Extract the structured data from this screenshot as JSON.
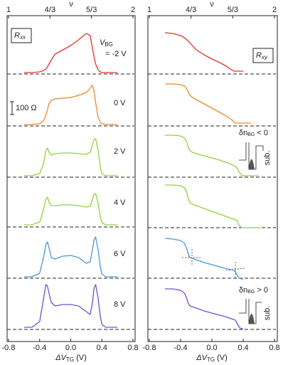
{
  "chart_data": [
    {
      "type": "line",
      "panel_label": {
        "main": "R",
        "sub": "xx"
      },
      "xlabel": {
        "main": "ΔV",
        "sub": "TG",
        "unit": " (V)"
      },
      "x2label": "ν",
      "gate_label": {
        "main": "V",
        "sub": "BG"
      },
      "scale_bar": "100 Ω",
      "xlim": [
        -0.8,
        0.8
      ],
      "xticks": [
        -0.8,
        -0.4,
        {
          "value": 0,
          "label": "0.0"
        },
        0.4,
        0.8
      ],
      "x2lim": [
        1,
        2
      ],
      "x2ticks": [
        1,
        {
          "value": 1.3333,
          "label": "4/3"
        },
        {
          "value": 1.6667,
          "label": "5/3"
        },
        2
      ],
      "ylim": [
        0,
        460
      ],
      "baselines": [
        376,
        303,
        231,
        161,
        89,
        17
      ],
      "x": [
        -0.6,
        -0.5,
        -0.4,
        -0.35,
        -0.32,
        -0.3,
        -0.28,
        -0.25,
        -0.2,
        -0.1,
        0,
        0.1,
        0.2,
        0.25,
        0.28,
        0.3,
        0.32,
        0.35,
        0.38,
        0.4,
        0.45,
        0.5,
        0.6
      ],
      "series": [
        {
          "name": "= -2 V",
          "color": "#e8332a",
          "values": [
            378,
            378,
            379,
            381,
            383,
            386,
            390,
            396,
            404,
            410,
            416,
            424,
            433,
            430,
            412,
            400,
            390,
            382,
            379,
            378,
            378,
            378,
            378
          ]
        },
        {
          "name": "0 V",
          "color": "#f0882a",
          "values": [
            305,
            305,
            306,
            310,
            318,
            326,
            334,
            339,
            341,
            342,
            343,
            346,
            350,
            356,
            360,
            352,
            336,
            316,
            308,
            306,
            305,
            305,
            305
          ]
        },
        {
          "name": "2 V",
          "color": "#8ed43c",
          "values": [
            233,
            233,
            236,
            250,
            268,
            272,
            266,
            262,
            264,
            265,
            265,
            264,
            263,
            266,
            276,
            284,
            285,
            270,
            245,
            236,
            233,
            233,
            233
          ]
        },
        {
          "name": "4 V",
          "color": "#8ed43c",
          "values": [
            164,
            164,
            168,
            185,
            200,
            203,
            196,
            191,
            191,
            192,
            192,
            191,
            189,
            190,
            200,
            207,
            208,
            195,
            175,
            167,
            164,
            164,
            164
          ]
        },
        {
          "name": "6 V",
          "color": "#4a96d8",
          "values": [
            91,
            91,
            96,
            118,
            136,
            140,
            132,
            118,
            116,
            120,
            121,
            118,
            110,
            112,
            130,
            143,
            147,
            130,
            105,
            95,
            91,
            91,
            91
          ]
        },
        {
          "name": "8 V",
          "color": "#7250d0",
          "values": [
            20,
            20,
            28,
            60,
            80,
            78,
            68,
            55,
            50,
            52,
            52,
            50,
            42,
            38,
            55,
            75,
            80,
            62,
            35,
            24,
            20,
            20,
            20
          ]
        }
      ]
    },
    {
      "type": "line",
      "panel_label": {
        "main": "R",
        "sub": "xy"
      },
      "xlabel": {
        "main": "ΔV",
        "sub": "TG",
        "unit": " (V)"
      },
      "x2label": "ν",
      "insets": [
        {
          "main": "δn",
          "sub": "BG",
          "rest": " < 0",
          "side": "sub."
        },
        {
          "main": "δn",
          "sub": "BG",
          "rest": " > 0",
          "side": "sub."
        }
      ],
      "xlim": [
        -0.8,
        0.8
      ],
      "xticks": [
        -0.8,
        -0.4,
        {
          "value": 0,
          "label": "0.0"
        },
        0.4,
        0.8
      ],
      "x2lim": [
        1,
        2
      ],
      "x2ticks": [
        1,
        {
          "value": 1.3333,
          "label": "4/3"
        },
        {
          "value": 1.6667,
          "label": "5/3"
        },
        2
      ],
      "ylim": [
        0,
        460
      ],
      "baselines": [
        376,
        303,
        231,
        160,
        89,
        17
      ],
      "x": [
        -0.6,
        -0.5,
        -0.4,
        -0.35,
        -0.32,
        -0.3,
        -0.28,
        -0.25,
        -0.2,
        -0.1,
        0,
        0.1,
        0.2,
        0.25,
        0.28,
        0.3,
        0.32,
        0.35,
        0.38,
        0.4,
        0.45,
        0.5,
        0.6
      ],
      "series": [
        {
          "color": "#e8332a",
          "values": [
            434,
            433,
            430,
            427,
            424,
            422,
            420,
            416,
            410,
            403,
            397,
            392,
            386,
            382,
            380,
            380,
            380,
            380,
            380,
            380,
            null,
            null,
            null
          ]
        },
        {
          "color": "#f0882a",
          "values": [
            362,
            362,
            361,
            359,
            355,
            350,
            346,
            343,
            340,
            334,
            328,
            322,
            316,
            312,
            309,
            307,
            307,
            307,
            307,
            307,
            307,
            307,
            null
          ]
        },
        {
          "color": "#8ed43c",
          "values": [
            290,
            290,
            289,
            286,
            280,
            272,
            268,
            266,
            264,
            261,
            258,
            255,
            251,
            249,
            247,
            246,
            244,
            238,
            234,
            233,
            233,
            233,
            233
          ]
        },
        {
          "color": "#8ed43c",
          "values": [
            220,
            220,
            219,
            216,
            210,
            200,
            195,
            193,
            191,
            187,
            183,
            179,
            175,
            173,
            172,
            171,
            170,
            163,
            160,
            160,
            160,
            160,
            160
          ]
        },
        {
          "color": "#4a96d8",
          "values": [
            145,
            144,
            142,
            138,
            130,
            122,
            118,
            117,
            115,
            111,
            108,
            105,
            102,
            101,
            100,
            98,
            94,
            89,
            88,
            88,
            null,
            null,
            null
          ]
        },
        {
          "color": "#7250d0",
          "values": [
            74,
            74,
            72,
            68,
            60,
            53,
            50,
            49,
            47,
            43,
            40,
            37,
            34,
            32,
            31,
            30,
            26,
            20,
            18,
            18,
            null,
            null,
            null
          ]
        }
      ]
    }
  ]
}
